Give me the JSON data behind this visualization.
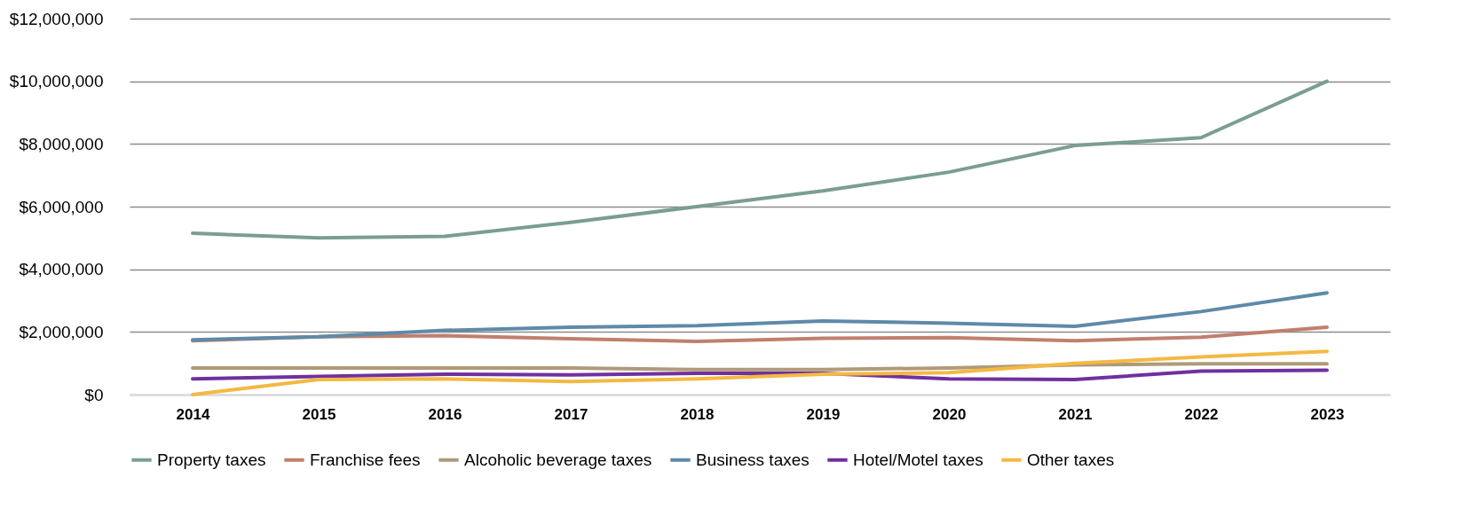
{
  "chart_data": {
    "type": "line",
    "categories": [
      "2014",
      "2015",
      "2016",
      "2017",
      "2018",
      "2019",
      "2020",
      "2021",
      "2022",
      "2023"
    ],
    "ylim": [
      0,
      12000000
    ],
    "yticks": [
      {
        "value": 0,
        "label": "$0"
      },
      {
        "value": 2000000,
        "label": "$2,000,000"
      },
      {
        "value": 4000000,
        "label": "$4,000,000"
      },
      {
        "value": 6000000,
        "label": "$6,000,000"
      },
      {
        "value": 8000000,
        "label": "$8,000,000"
      },
      {
        "value": 10000000,
        "label": "$10,000,000"
      },
      {
        "value": 12000000,
        "label": "$12,000,000"
      }
    ],
    "grid": "y",
    "legend": "bottom",
    "marker": "none",
    "line_style": "solid",
    "series": [
      {
        "name": "Property taxes",
        "color": "#7a9e8f",
        "values": [
          5150000,
          5000000,
          5050000,
          5500000,
          6000000,
          6500000,
          7100000,
          7950000,
          8200000,
          10000000
        ]
      },
      {
        "name": "Franchise fees",
        "color": "#c17f6e",
        "values": [
          1720000,
          1850000,
          1880000,
          1780000,
          1700000,
          1800000,
          1820000,
          1720000,
          1830000,
          2150000
        ]
      },
      {
        "name": "Alcoholic beverage taxes",
        "color": "#b09a7a",
        "values": [
          850000,
          850000,
          850000,
          850000,
          800000,
          800000,
          850000,
          950000,
          980000,
          980000
        ]
      },
      {
        "name": "Business taxes",
        "color": "#5e8aa8",
        "values": [
          1750000,
          1850000,
          2050000,
          2150000,
          2200000,
          2350000,
          2280000,
          2180000,
          2650000,
          3250000
        ]
      },
      {
        "name": "Hotel/Motel taxes",
        "color": "#7030a0",
        "values": [
          500000,
          580000,
          650000,
          630000,
          680000,
          680000,
          500000,
          480000,
          750000,
          780000
        ]
      },
      {
        "name": "Other taxes",
        "color": "#f4b942",
        "values": [
          0,
          480000,
          500000,
          420000,
          500000,
          650000,
          700000,
          1000000,
          1200000,
          1380000
        ]
      }
    ]
  }
}
